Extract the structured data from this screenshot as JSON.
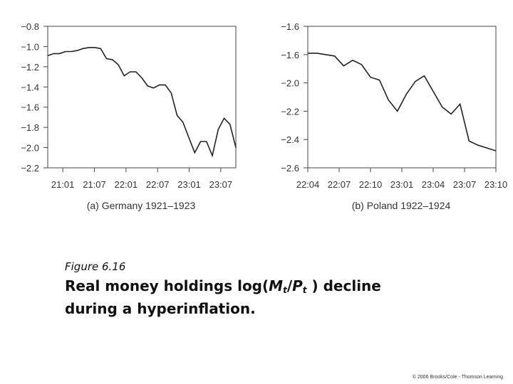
{
  "chart_data": [
    {
      "type": "line",
      "caption": "(a) Germany 1921–1923",
      "x_ticks": [
        "21:01",
        "21:07",
        "22:01",
        "22:07",
        "23:01",
        "23:07"
      ],
      "y_ticks": [
        "−0.8",
        "−1.0",
        "−1.2",
        "−1.4",
        "−1.6",
        "−1.8",
        "−2.0",
        "−2.2"
      ],
      "ylim": [
        -2.2,
        -0.8
      ],
      "xlim": [
        0,
        32
      ],
      "x": [
        0,
        1,
        2,
        3,
        4,
        5,
        6,
        7,
        8,
        9,
        10,
        11,
        12,
        13,
        14,
        15,
        16,
        17,
        18,
        19,
        20,
        21,
        22,
        23,
        24,
        25,
        26,
        27,
        28,
        29,
        30,
        31,
        32
      ],
      "y": [
        -1.09,
        -1.07,
        -1.07,
        -1.05,
        -1.05,
        -1.04,
        -1.02,
        -1.01,
        -1.01,
        -1.02,
        -1.12,
        -1.13,
        -1.18,
        -1.29,
        -1.25,
        -1.25,
        -1.31,
        -1.39,
        -1.41,
        -1.38,
        -1.38,
        -1.46,
        -1.68,
        -1.75,
        -1.9,
        -2.05,
        -1.94,
        -1.94,
        -2.08,
        -1.82,
        -1.71,
        -1.77,
        -2.0
      ],
      "grid": false
    },
    {
      "type": "line",
      "caption": "(b) Poland 1922–1924",
      "x_ticks": [
        "22:04",
        "22:07",
        "22:10",
        "23:01",
        "23:04",
        "23:07",
        "23:10"
      ],
      "y_ticks": [
        "−1.6",
        "−1.6",
        "−2.0",
        "−2.2",
        "−2.4",
        "−2.6"
      ],
      "ylim": [
        -2.6,
        -1.6
      ],
      "xlim": [
        0,
        21
      ],
      "x": [
        0,
        1,
        2,
        3,
        4,
        5,
        6,
        7,
        8,
        9,
        10,
        11,
        12,
        13,
        14,
        15,
        16,
        17,
        18,
        19,
        20,
        21
      ],
      "y": [
        -1.79,
        -1.79,
        -1.8,
        -1.81,
        -1.88,
        -1.84,
        -1.87,
        -1.96,
        -1.98,
        -2.12,
        -2.2,
        -2.08,
        -1.99,
        -1.95,
        -2.06,
        -2.17,
        -2.22,
        -2.15,
        -2.41,
        -2.44,
        -2.46,
        -2.48
      ],
      "grid": false
    }
  ],
  "figure": {
    "label": "Figure 6.16",
    "title_part1": "Real money holdings log(",
    "title_m": "M",
    "title_sub_t1": "t",
    "title_slash": "/",
    "title_p": "P",
    "title_sub_t2": "t",
    "title_part2": " ) decline",
    "title_line2": "during a hyperinflation."
  },
  "copyright": "© 2006 Brooks/Cole - Thomson Learning"
}
